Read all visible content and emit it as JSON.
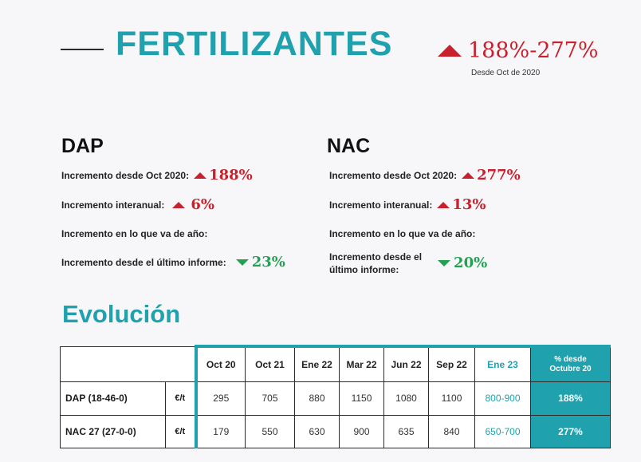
{
  "header": {
    "title": "FERTILIZANTES",
    "change_range": "188%-277%",
    "since_label": "Desde Oct de 2020"
  },
  "dap": {
    "title": "DAP",
    "rows": [
      {
        "label": "Incremento desde Oct 2020:",
        "value": "188%",
        "direction": "up"
      },
      {
        "label": "Incremento interanual:",
        "value": "6%",
        "direction": "up"
      },
      {
        "label": "Incremento en lo que va de año:",
        "value": "",
        "direction": ""
      },
      {
        "label": "Incremento desde el último informe:",
        "value": "23%",
        "direction": "down"
      }
    ]
  },
  "nac": {
    "title": "NAC",
    "rows": [
      {
        "label": "Incremento desde Oct 2020:",
        "value": "277%",
        "direction": "up"
      },
      {
        "label": "Incremento interanual:",
        "value": "13%",
        "direction": "up"
      },
      {
        "label": "Incremento en lo que va de año:",
        "value": "",
        "direction": ""
      },
      {
        "label_line1": "Incremento desde el",
        "label_line2": "último informe:",
        "value": "20%",
        "direction": "down"
      }
    ]
  },
  "evolucion": {
    "title": "Evolución",
    "headers": [
      "Oct 20",
      "Oct 21",
      "Ene 22",
      "Mar 22",
      "Jun 22",
      "Sep 22",
      "Ene 23"
    ],
    "pct_header_line1": "% desde",
    "pct_header_line2": "Octubre 20",
    "rows": [
      {
        "product": "DAP (18-46-0)",
        "unit": "€/t",
        "values": [
          "295",
          "705",
          "880",
          "1150",
          "1080",
          "1100",
          "800-900"
        ],
        "pct": "188%"
      },
      {
        "product": "NAC 27 (27-0-0)",
        "unit": "€/t",
        "values": [
          "179",
          "550",
          "630",
          "900",
          "635",
          "840",
          "650-700"
        ],
        "pct": "277%"
      }
    ]
  },
  "colors": {
    "accent": "#1fa2ad",
    "up": "#c8202c",
    "down": "#23a052"
  }
}
